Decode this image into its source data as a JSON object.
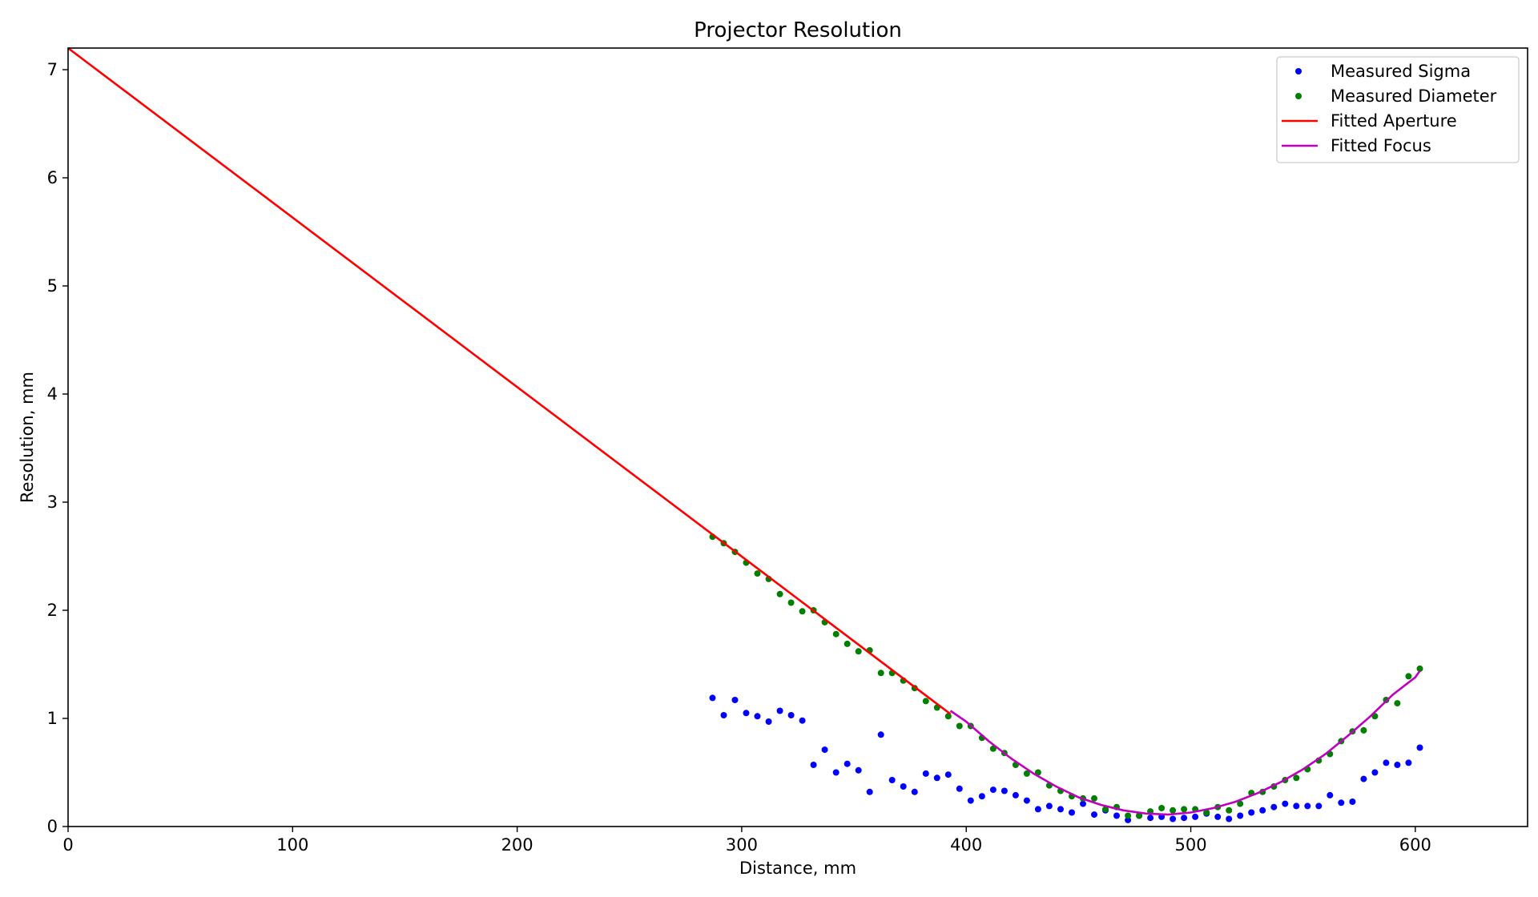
{
  "chart_data": {
    "type": "scatter",
    "title": "Projector Resolution",
    "xlabel": "Distance, mm",
    "ylabel": "Resolution, mm",
    "xlim": [
      0,
      650
    ],
    "ylim": [
      0,
      7.2
    ],
    "xticks": [
      0,
      100,
      200,
      300,
      400,
      500,
      600
    ],
    "yticks": [
      0,
      1,
      2,
      3,
      4,
      5,
      6,
      7
    ],
    "grid": false,
    "legend_position": "top-right",
    "series": [
      {
        "name": "Measured Sigma",
        "kind": "points",
        "color": "#0000ff",
        "x": [
          287,
          292,
          297,
          302,
          307,
          312,
          317,
          322,
          327,
          332,
          337,
          342,
          347,
          352,
          357,
          362,
          367,
          372,
          377,
          382,
          387,
          392,
          397,
          402,
          407,
          412,
          417,
          422,
          427,
          432,
          437,
          442,
          447,
          452,
          457,
          462,
          467,
          472,
          477,
          482,
          487,
          492,
          497,
          502,
          507,
          512,
          517,
          522,
          527,
          532,
          537,
          542,
          547,
          552,
          557,
          562,
          567,
          572,
          577,
          582,
          587,
          592,
          597,
          602
        ],
        "y": [
          1.19,
          1.03,
          1.17,
          1.05,
          1.02,
          0.97,
          1.07,
          1.03,
          0.98,
          0.57,
          0.71,
          0.5,
          0.58,
          0.52,
          0.32,
          0.85,
          0.43,
          0.37,
          0.32,
          0.49,
          0.45,
          0.48,
          0.35,
          0.24,
          0.28,
          0.34,
          0.33,
          0.29,
          0.24,
          0.16,
          0.19,
          0.16,
          0.13,
          0.21,
          0.11,
          0.15,
          0.1,
          0.06,
          0.1,
          0.08,
          0.09,
          0.07,
          0.08,
          0.09,
          0.12,
          0.09,
          0.07,
          0.1,
          0.13,
          0.15,
          0.18,
          0.21,
          0.19,
          0.19,
          0.19,
          0.29,
          0.22,
          0.23,
          0.44,
          0.5,
          0.59,
          0.57,
          0.59,
          0.73
        ]
      },
      {
        "name": "Measured Diameter",
        "kind": "points",
        "color": "#008000",
        "x": [
          287,
          292,
          297,
          302,
          307,
          312,
          317,
          322,
          327,
          332,
          337,
          342,
          347,
          352,
          357,
          362,
          367,
          372,
          377,
          382,
          387,
          392,
          397,
          402,
          407,
          412,
          417,
          422,
          427,
          432,
          437,
          442,
          447,
          452,
          457,
          462,
          467,
          472,
          477,
          482,
          487,
          492,
          497,
          502,
          507,
          512,
          517,
          522,
          527,
          532,
          537,
          542,
          547,
          552,
          557,
          562,
          567,
          572,
          577,
          582,
          587,
          592,
          597,
          602
        ],
        "y": [
          2.68,
          2.62,
          2.54,
          2.44,
          2.34,
          2.29,
          2.15,
          2.07,
          1.99,
          2.0,
          1.89,
          1.78,
          1.69,
          1.62,
          1.63,
          1.42,
          1.42,
          1.35,
          1.28,
          1.16,
          1.1,
          1.02,
          0.93,
          0.93,
          0.82,
          0.72,
          0.68,
          0.57,
          0.49,
          0.5,
          0.38,
          0.33,
          0.28,
          0.26,
          0.26,
          0.16,
          0.18,
          0.1,
          0.1,
          0.14,
          0.17,
          0.15,
          0.16,
          0.16,
          0.13,
          0.18,
          0.15,
          0.21,
          0.31,
          0.32,
          0.37,
          0.43,
          0.45,
          0.53,
          0.61,
          0.67,
          0.79,
          0.88,
          0.89,
          1.02,
          1.17,
          1.14,
          1.39,
          1.46
        ]
      },
      {
        "name": "Fitted Aperture",
        "kind": "line",
        "color": "#ff0000",
        "x": [
          0,
          393
        ],
        "y": [
          7.2,
          1.04
        ]
      },
      {
        "name": "Fitted Focus",
        "kind": "line",
        "color": "#bf00bf",
        "x": [
          393,
          400,
          410,
          420,
          430,
          440,
          450,
          460,
          470,
          480,
          490,
          500,
          510,
          520,
          530,
          540,
          550,
          560,
          570,
          580,
          590,
          600,
          602
        ],
        "y": [
          1.07,
          0.97,
          0.79,
          0.63,
          0.49,
          0.37,
          0.27,
          0.2,
          0.15,
          0.12,
          0.11,
          0.13,
          0.17,
          0.23,
          0.31,
          0.41,
          0.53,
          0.67,
          0.84,
          1.02,
          1.22,
          1.38,
          1.44
        ]
      }
    ]
  }
}
